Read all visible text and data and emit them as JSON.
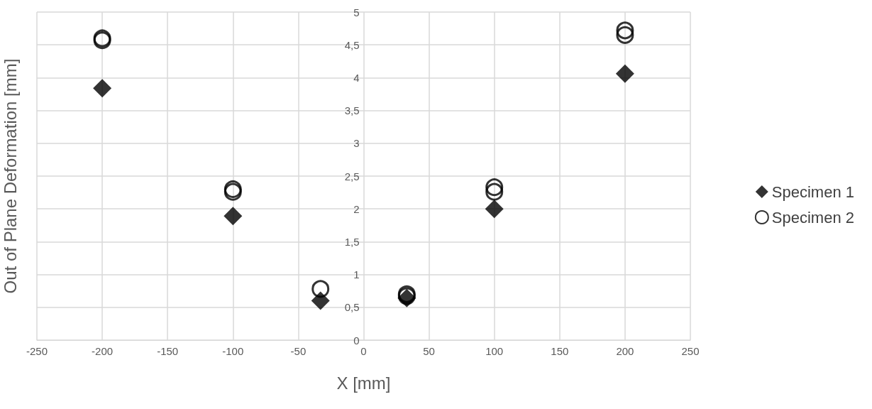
{
  "chart_data": {
    "type": "scatter",
    "xlabel": "X [mm]",
    "ylabel": "Out of Plane Deformation [mm]",
    "series": [
      {
        "name": "Specimen 1",
        "color": "#000000",
        "marker": "diamond",
        "x": [
          -200,
          -100,
          -33,
          33,
          100,
          200
        ],
        "values": [
          3.84,
          1.89,
          0.6,
          0.64,
          2.0,
          4.06
        ]
      },
      {
        "name": "Specimen 2",
        "color": "#000000",
        "marker": "circle",
        "x": [
          -200,
          -200,
          -100,
          -100,
          -33,
          33,
          33,
          100,
          100,
          200,
          200
        ],
        "values": [
          4.6,
          4.57,
          2.3,
          2.26,
          0.78,
          0.7,
          0.67,
          2.33,
          2.26,
          4.72,
          4.65
        ]
      }
    ],
    "xlim": [
      -250,
      250
    ],
    "xticks": [
      -250,
      -200,
      -150,
      -100,
      -50,
      0,
      50,
      100,
      150,
      200,
      250
    ],
    "ylim": [
      0,
      5
    ],
    "yticks": [
      0,
      {
        "value": 0.5,
        "label": "0,5"
      },
      1,
      {
        "value": 1.5,
        "label": "1,5"
      },
      2,
      {
        "value": 2.5,
        "label": "2,5"
      },
      3,
      {
        "value": 3.5,
        "label": "3,5"
      },
      4,
      {
        "value": 4.5,
        "label": "4,5"
      },
      5
    ],
    "grid": true,
    "legend": "right"
  }
}
